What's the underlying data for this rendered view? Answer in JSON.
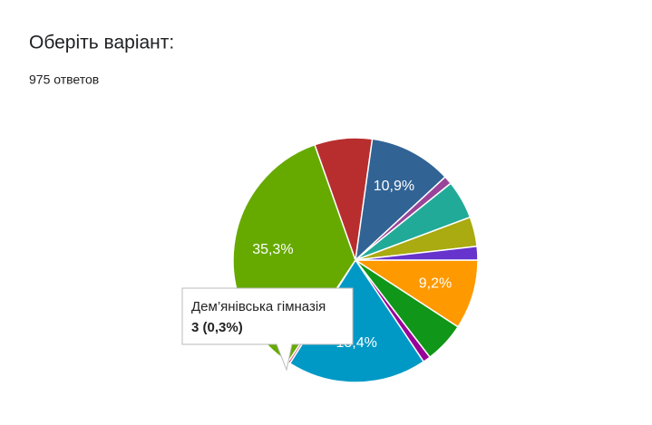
{
  "title": "Оберіть варіант:",
  "subtitle": "975 ответов",
  "chart_data": {
    "type": "pie",
    "categories": [
      null,
      null,
      null,
      null,
      "Дем’янівська гімназія",
      null,
      null,
      null,
      null,
      null,
      null,
      null
    ],
    "values": [
      9.2,
      5.4,
      1.0,
      18.4,
      0.3,
      35.3,
      7.6,
      10.9,
      1.1,
      5.1,
      3.9,
      1.8
    ],
    "value_labels": [
      "9,2%",
      null,
      null,
      "18,4%",
      null,
      "35,3%",
      null,
      "10,9%",
      null,
      null,
      null,
      null
    ],
    "colors": [
      "#ff9900",
      "#109618",
      "#990099",
      "#0099c6",
      "#dd4477",
      "#66aa00",
      "#b82e2e",
      "#316395",
      "#994499",
      "#22aa99",
      "#aaaa11",
      "#6633cc"
    ],
    "tooltip": {
      "count_label": "3 (0,3%)"
    }
  }
}
